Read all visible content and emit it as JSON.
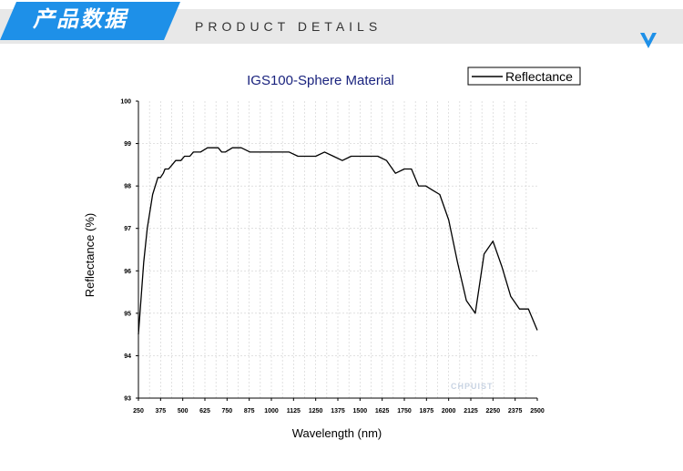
{
  "header": {
    "title": "产品数据",
    "subtitle": "PRODUCT DETAILS",
    "brand_color": "#1e90e8",
    "icon": "chevron-v-icon"
  },
  "watermark": "CHPUIST",
  "chart_data": {
    "type": "line",
    "title": "IGS100-Sphere Material",
    "xlabel": "Wavelength (nm)",
    "ylabel": "Reflectance (%)",
    "xlim": [
      250,
      2500
    ],
    "ylim": [
      93,
      100
    ],
    "xticks": [
      250,
      375,
      500,
      625,
      750,
      875,
      1000,
      1125,
      1250,
      1375,
      1500,
      1625,
      1750,
      1875,
      2000,
      2125,
      2250,
      2375,
      2500
    ],
    "yticks": [
      93,
      94,
      95,
      96,
      97,
      98,
      99,
      100
    ],
    "grid": true,
    "legend": "top-right",
    "series": [
      {
        "name": "Reflectance",
        "color": "#000000",
        "x": [
          250,
          280,
          300,
          330,
          360,
          375,
          390,
          400,
          420,
          440,
          460,
          490,
          510,
          540,
          560,
          600,
          640,
          680,
          700,
          720,
          740,
          780,
          830,
          880,
          950,
          1000,
          1100,
          1150,
          1200,
          1250,
          1300,
          1350,
          1400,
          1450,
          1500,
          1600,
          1650,
          1700,
          1750,
          1790,
          1830,
          1870,
          1910,
          1950,
          2000,
          2050,
          2100,
          2150,
          2200,
          2250,
          2300,
          2350,
          2400,
          2450,
          2500
        ],
        "y": [
          94.5,
          96.2,
          97.0,
          97.8,
          98.2,
          98.2,
          98.3,
          98.4,
          98.4,
          98.5,
          98.6,
          98.6,
          98.7,
          98.7,
          98.8,
          98.8,
          98.9,
          98.9,
          98.9,
          98.8,
          98.8,
          98.9,
          98.9,
          98.8,
          98.8,
          98.8,
          98.8,
          98.7,
          98.7,
          98.7,
          98.8,
          98.7,
          98.6,
          98.7,
          98.7,
          98.7,
          98.6,
          98.3,
          98.4,
          98.4,
          98.0,
          98.0,
          97.9,
          97.8,
          97.2,
          96.2,
          95.3,
          95.0,
          96.4,
          96.7,
          96.1,
          95.4,
          95.1,
          95.1,
          94.6
        ]
      }
    ]
  }
}
